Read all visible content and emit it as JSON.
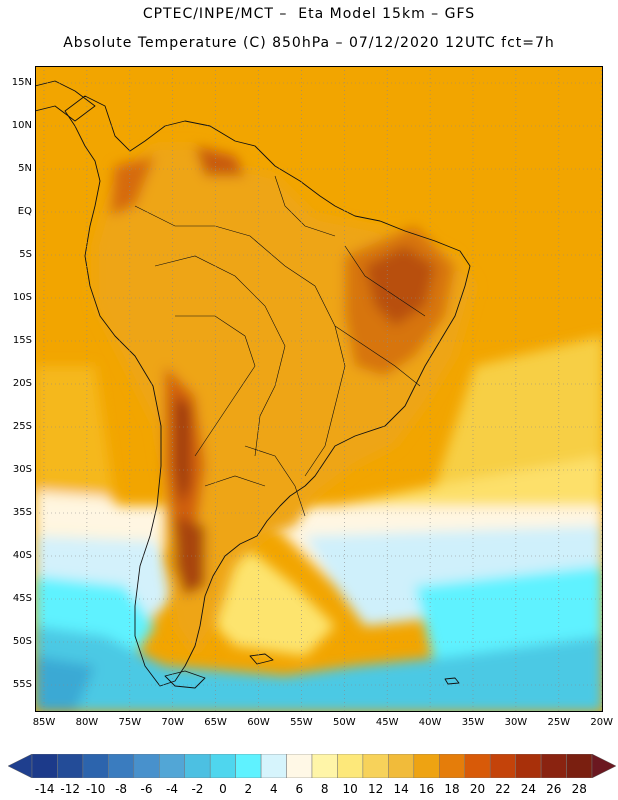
{
  "title": {
    "line1": "CPTEC/INPE/MCT –  Eta Model 15km – GFS",
    "line2": "Absolute Temperature (C) 850hPa – 07/12/2020 12UTC fct=7h"
  },
  "map": {
    "lat_labels": [
      "15N",
      "10N",
      "5N",
      "EQ",
      "5S",
      "10S",
      "15S",
      "20S",
      "25S",
      "30S",
      "35S",
      "40S",
      "45S",
      "50S",
      "55S"
    ],
    "lon_labels": [
      "85W",
      "80W",
      "75W",
      "70W",
      "65W",
      "60W",
      "55W",
      "50W",
      "45W",
      "40W",
      "35W",
      "30W",
      "25W",
      "20W"
    ],
    "colors": {
      "ocean_warm": "#f2a200",
      "ocean_mid": "#f5c43a",
      "ocean_pale": "#fff6e0",
      "cold_light": "#cfeffc",
      "cold_cyan": "#5ff2ff",
      "cold_blue": "#4bd0e8",
      "land_outline": "#111111",
      "hot_dark": "#8c2a06"
    }
  },
  "colorbar": {
    "labels": [
      "-14",
      "-12",
      "-10",
      "-8",
      "-6",
      "-4",
      "-2",
      "0",
      "2",
      "4",
      "6",
      "8",
      "10",
      "12",
      "14",
      "16",
      "18",
      "20",
      "22",
      "24",
      "26",
      "28"
    ],
    "colors": [
      "#1c3a8a",
      "#234c98",
      "#2c64ad",
      "#3a7cbf",
      "#4891cc",
      "#52a6d6",
      "#4cc0e2",
      "#4fd6ee",
      "#5ff2ff",
      "#d6f4fc",
      "#fff8e6",
      "#fff5a8",
      "#fde87a",
      "#f7d25a",
      "#f1bb3a",
      "#eea312",
      "#e57d0a",
      "#d85a08",
      "#c4430a",
      "#a8300a",
      "#8a2310",
      "#7a1f10"
    ],
    "left_arrow_color": "#1f3f8e",
    "right_arrow_color": "#6b1820"
  }
}
